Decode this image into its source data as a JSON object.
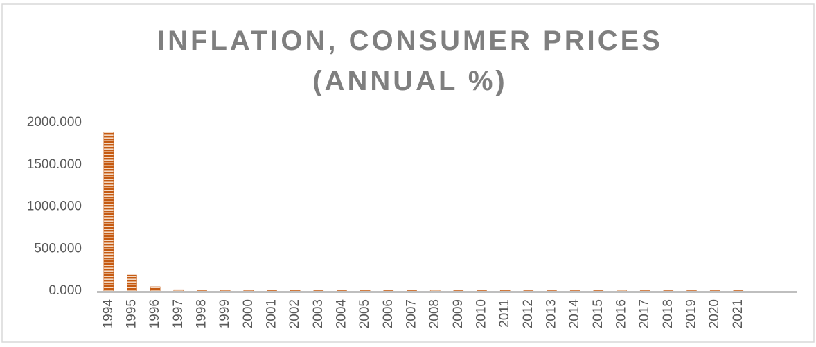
{
  "chart_data": {
    "type": "bar",
    "title": [
      "INFLATION, CONSUMER PRICES",
      "(ANNUAL %)"
    ],
    "categories": [
      "1994",
      "1995",
      "1996",
      "1997",
      "1998",
      "1999",
      "2000",
      "2001",
      "2002",
      "2003",
      "2004",
      "2005",
      "2006",
      "2007",
      "2008",
      "2009",
      "2010",
      "2011",
      "2012",
      "2013",
      "2014",
      "2015",
      "2016",
      "2017",
      "2018",
      "2019",
      "2020",
      "2021",
      null,
      null
    ],
    "values": [
      1891,
      189,
      50,
      15,
      7,
      8,
      8,
      6,
      6,
      5,
      5,
      5,
      6,
      6,
      14,
      5,
      5,
      6,
      4,
      4,
      4,
      5,
      12,
      4,
      4,
      4,
      4,
      5,
      null,
      null
    ],
    "color": "#c55a11",
    "ylim": [
      0,
      2000
    ],
    "yticks": [
      {
        "value": 0,
        "label": "0.000"
      },
      {
        "value": 500,
        "label": "500.000"
      },
      {
        "value": 1000,
        "label": "1000.000"
      },
      {
        "value": 1500,
        "label": "1500.000"
      },
      {
        "value": 2000,
        "label": "2000.000"
      }
    ],
    "grid": false
  }
}
